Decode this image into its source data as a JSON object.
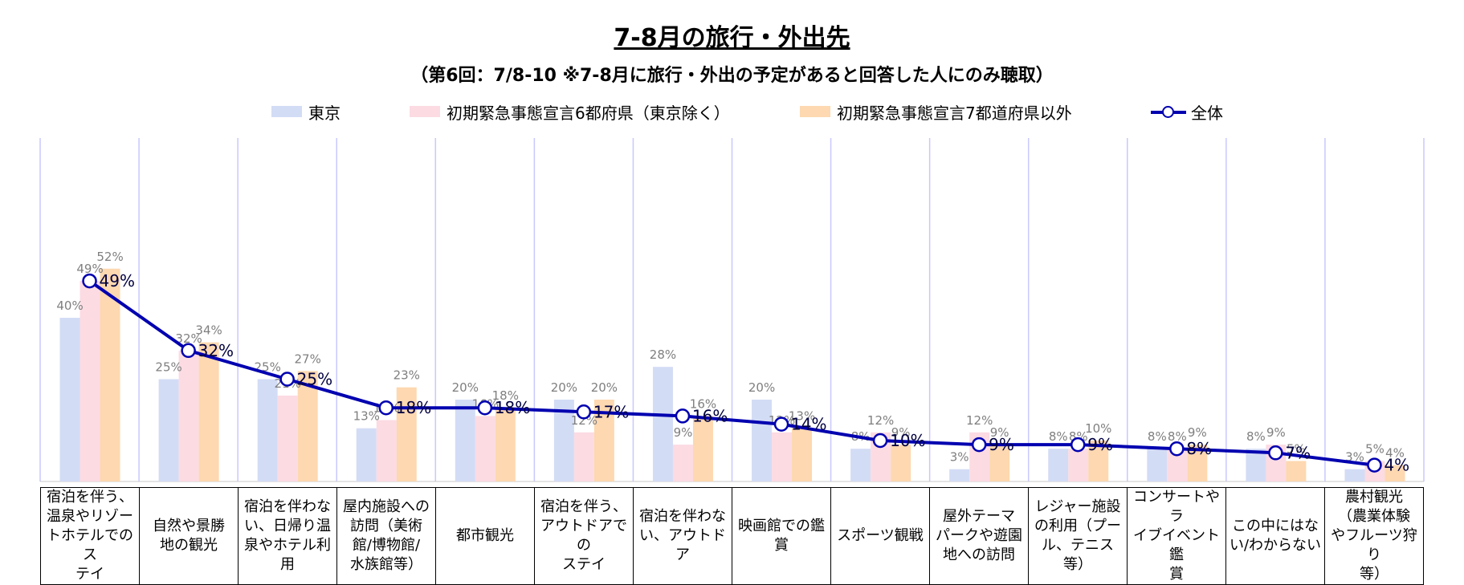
{
  "chart_data": {
    "type": "bar",
    "title": "7-8月の旅行・外出先",
    "subtitle": "（第6回：7/8-10 ※7-8月に旅行・外出の予定があると回答した人にのみ聴取）",
    "categories": [
      "宿泊を伴う、温泉やリゾートホテルでのステイ",
      "自然や景勝地の観光",
      "宿泊を伴わない、日帰り温泉やホテル利用",
      "屋内施設への訪問（美術館/博物館/水族館等）",
      "都市観光",
      "宿泊を伴う、アウトドアでのステイ",
      "宿泊を伴わない、アウトドア",
      "映画館での鑑賞",
      "スポーツ観戦",
      "屋外テーマパークや遊園地への訪問",
      "レジャー施設の利用（プール、テニス等）",
      "コンサートやライブイベント鑑賞",
      "この中にはない/わからない",
      "農村観光（農業体験やフルーツ狩り等）"
    ],
    "category_lines": [
      [
        "宿泊を伴う、",
        "温泉やリゾー",
        "トホテルでのス",
        "テイ"
      ],
      [
        "自然や景勝",
        "地の観光"
      ],
      [
        "宿泊を伴わな",
        "い、日帰り温",
        "泉やホテル利",
        "用"
      ],
      [
        "屋内施設への",
        "訪問（美術",
        "館/博物館/",
        "水族館等）"
      ],
      [
        "都市観光"
      ],
      [
        "宿泊を伴う、",
        "アウトドアでの",
        "ステイ"
      ],
      [
        "宿泊を伴わな",
        "い、アウトドア"
      ],
      [
        "映画館での鑑",
        "賞"
      ],
      [
        "スポーツ観戦"
      ],
      [
        "屋外テーマ",
        "パークや遊園",
        "地への訪問"
      ],
      [
        "レジャー施設",
        "の利用（プー",
        "ル、テニス",
        "等）"
      ],
      [
        "コンサートやラ",
        "イブイベント鑑",
        "賞"
      ],
      [
        "この中にはな",
        "い/わからない"
      ],
      [
        "農村観光",
        "（農業体験",
        "やフルーツ狩り",
        "等）"
      ]
    ],
    "series": [
      {
        "name": "東京",
        "kind": "bar",
        "color": "#d3dcf5",
        "values": [
          40,
          25,
          25,
          13,
          20,
          20,
          28,
          20,
          8,
          3,
          8,
          8,
          8,
          3
        ]
      },
      {
        "name": "初期緊急事態宣言6都府県（東京除く）",
        "kind": "bar",
        "color": "#fcdbe3",
        "values": [
          49,
          32,
          21,
          15,
          16,
          12,
          9,
          12,
          12,
          12,
          8,
          8,
          9,
          5
        ]
      },
      {
        "name": "初期緊急事態宣言7都道府県以外",
        "kind": "bar",
        "color": "#fdd8b0",
        "values": [
          52,
          34,
          27,
          23,
          18,
          20,
          16,
          13,
          9,
          9,
          10,
          9,
          5,
          4
        ]
      },
      {
        "name": "全体",
        "kind": "line",
        "color": "#0000b0",
        "values": [
          49,
          32,
          25,
          18,
          18,
          17,
          16,
          14,
          10,
          9,
          9,
          8,
          7,
          4
        ]
      }
    ],
    "value_suffix": "%",
    "ylim": [
      0,
      60
    ],
    "legend_position": "top",
    "grid": "vertical separators"
  }
}
